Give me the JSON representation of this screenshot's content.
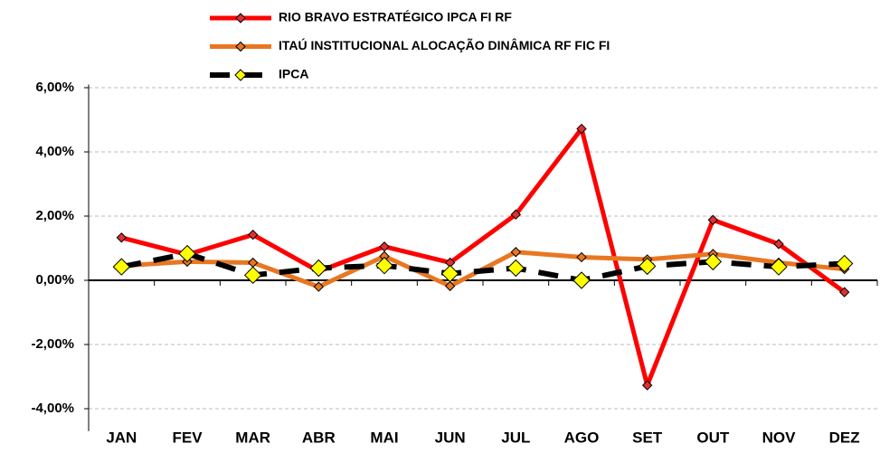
{
  "chart_data": {
    "type": "line",
    "categories": [
      "JAN",
      "FEV",
      "MAR",
      "ABR",
      "MAI",
      "JUN",
      "JUL",
      "AGO",
      "SET",
      "OUT",
      "NOV",
      "DEZ"
    ],
    "series": [
      {
        "name": "RIO BRAVO ESTRATÉGICO IPCA FI RF",
        "color": "#ff0000",
        "marker_color": "#e03030",
        "marker_size": 5,
        "line_style": "solid",
        "values": [
          1.33,
          0.8,
          1.42,
          0.28,
          1.05,
          0.55,
          2.05,
          4.72,
          -3.27,
          1.88,
          1.13,
          -0.37
        ]
      },
      {
        "name": "ITAÚ INSTITUCIONAL ALOCAÇÃO DINÂMICA RF FIC FI",
        "color": "#e87722",
        "marker_color": "#e87722",
        "marker_size": 5,
        "line_style": "solid",
        "values": [
          0.45,
          0.58,
          0.55,
          -0.2,
          0.75,
          -0.18,
          0.88,
          0.72,
          0.65,
          0.82,
          0.55,
          0.35
        ]
      },
      {
        "name": "IPCA",
        "color": "#000000",
        "marker_color": "#ffff00",
        "marker_size": 9,
        "line_style": "dashed",
        "values": [
          0.42,
          0.83,
          0.16,
          0.38,
          0.46,
          0.21,
          0.38,
          0.0,
          0.44,
          0.58,
          0.42,
          0.52
        ]
      }
    ],
    "ylim": [
      -4.7,
      6.1
    ],
    "yticks": [
      {
        "value": -4,
        "label": "-4,00%"
      },
      {
        "value": -2,
        "label": "-2,00%"
      },
      {
        "value": 0,
        "label": "0,00%"
      },
      {
        "value": 2,
        "label": "2,00%"
      },
      {
        "value": 4,
        "label": "4,00%"
      },
      {
        "value": 6,
        "label": "6,00%"
      }
    ],
    "grid": true,
    "legend": "top"
  }
}
